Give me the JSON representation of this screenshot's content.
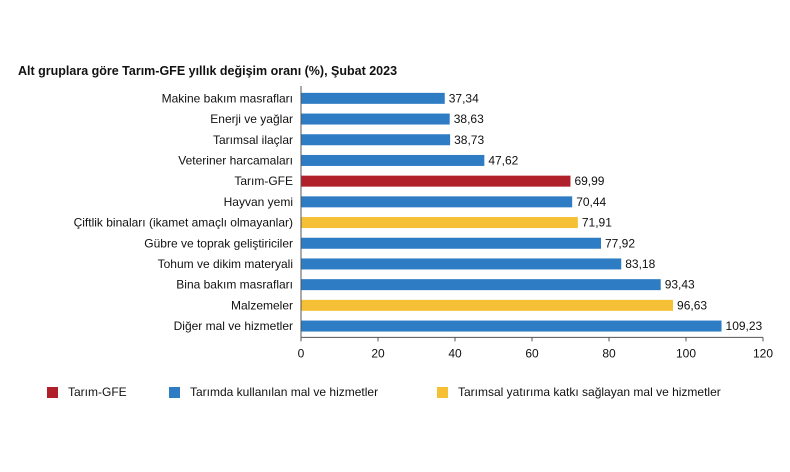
{
  "chart_data": {
    "type": "bar",
    "orientation": "horizontal",
    "title": "Alt gruplara göre Tarım-GFE yıllık değişim oranı (%), Şubat 2023",
    "xlim": [
      0,
      120
    ],
    "xticks": [
      "0",
      "20",
      "40",
      "60",
      "80",
      "100",
      "120"
    ],
    "categories": [
      "Makine bakım masrafları",
      "Enerji ve yağlar",
      "Tarımsal ilaçlar",
      "Veteriner harcamaları",
      "Tarım-GFE",
      "Hayvan yemi",
      "Çiftlik binaları (ikamet amaçlı olmayanlar)",
      "Gübre ve toprak geliştiriciler",
      "Tohum ve dikim materyali",
      "Bina bakım masrafları",
      "Malzemeler",
      "Diğer mal ve hizmetler"
    ],
    "values": [
      37.34,
      38.63,
      38.73,
      47.62,
      69.99,
      70.44,
      71.91,
      77.92,
      83.18,
      93.43,
      96.63,
      109.23
    ],
    "value_labels": [
      "37,34",
      "38,63",
      "38,73",
      "47,62",
      "69,99",
      "70,44",
      "71,91",
      "77,92",
      "83,18",
      "93,43",
      "96,63",
      "109,23"
    ],
    "groups": [
      "used",
      "used",
      "used",
      "used",
      "total",
      "used",
      "investment",
      "used",
      "used",
      "used",
      "investment",
      "used"
    ],
    "colors": {
      "total": "#b0202a",
      "used": "#2e7cc4",
      "investment": "#f5c035"
    },
    "legend_position": "bottom",
    "legend": [
      {
        "key": "total",
        "label": "Tarım-GFE"
      },
      {
        "key": "used",
        "label": "Tarımda kullanılan mal ve hizmetler"
      },
      {
        "key": "investment",
        "label": "Tarımsal yatırıma katkı sağlayan mal ve hizmetler"
      }
    ],
    "grid": false
  }
}
